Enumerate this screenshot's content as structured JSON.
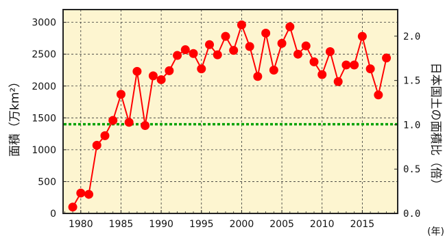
{
  "chart_data": {
    "type": "line",
    "x": [
      1979,
      1980,
      1981,
      1982,
      1983,
      1984,
      1985,
      1986,
      1987,
      1988,
      1989,
      1990,
      1991,
      1992,
      1993,
      1994,
      1995,
      1996,
      1997,
      1998,
      1999,
      2000,
      2001,
      2002,
      2003,
      2004,
      2005,
      2006,
      2007,
      2008,
      2009,
      2010,
      2011,
      2012,
      2013,
      2014,
      2015,
      2016,
      2017,
      2018
    ],
    "series": [
      {
        "values": [
          100,
          320,
          300,
          1070,
          1220,
          1460,
          1870,
          1430,
          2230,
          1380,
          2160,
          2100,
          2240,
          2480,
          2570,
          2510,
          2270,
          2650,
          2490,
          2780,
          2560,
          2960,
          2620,
          2150,
          2830,
          2250,
          2670,
          2930,
          2500,
          2630,
          2380,
          2180,
          2540,
          2070,
          2330,
          2330,
          2780,
          2270,
          1860,
          2440
        ],
        "color": "#ff0000"
      }
    ],
    "xlim": [
      1977.8,
      2019.4
    ],
    "ylim": [
      0,
      3200
    ],
    "xticks": [
      "1980",
      "1985",
      "1990",
      "1995",
      "2000",
      "2005",
      "2010",
      "2015"
    ],
    "yticks": [
      "0",
      "500",
      "1000",
      "1500",
      "2000",
      "2500",
      "3000"
    ],
    "y2ticks": [
      "0.0",
      "0.5",
      "1.0",
      "1.5",
      "2.0"
    ],
    "y2lim": [
      0,
      2.3
    ],
    "reference_line": {
      "value": 1400,
      "color": "#00a000"
    },
    "ylabel": "面積（万km²）",
    "y2label": "日本国土の面積比（倍）",
    "xunit": "(年)",
    "grid": true,
    "background": "#fdf5d0"
  }
}
